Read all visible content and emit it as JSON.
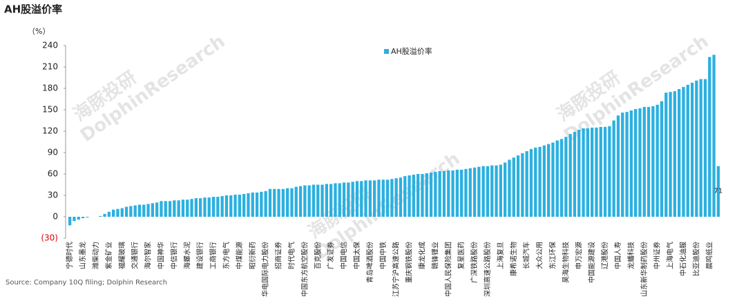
{
  "chart_data": {
    "type": "bar",
    "title": "AH股溢价率",
    "y_unit_label": "（%）",
    "source": "Source: Company 10Q filing; Dolphin Research",
    "watermark": [
      "海豚投研",
      "DolphinResearch"
    ],
    "ylim": [
      -30,
      240
    ],
    "yticks": [
      {
        "value": -30,
        "label": "(30)"
      },
      0,
      30,
      60,
      90,
      120,
      150,
      180,
      210,
      240
    ],
    "negative_tick_color": "#e00000",
    "grid": false,
    "legend": "top",
    "categories": [
      "宁德时代",
      null,
      null,
      "山东墨龙",
      null,
      null,
      "潍柴动力",
      null,
      null,
      "紫金矿业",
      null,
      null,
      "福耀玻璃",
      null,
      null,
      "交通银行",
      null,
      null,
      "海尔智家",
      null,
      null,
      "中国神华",
      null,
      null,
      "中信银行",
      null,
      null,
      "海螺水泥",
      null,
      null,
      "建设银行",
      null,
      null,
      "工商银行",
      null,
      null,
      "东方电气",
      null,
      null,
      "中煤能源",
      null,
      null,
      "昭衍新药",
      null,
      null,
      "华电国际电力股份",
      null,
      null,
      "招商证券",
      null,
      null,
      "时代电气",
      null,
      null,
      "中国东方航空股份",
      null,
      null,
      "百克股份",
      null,
      null,
      "广发证券",
      null,
      null,
      "中国电信",
      null,
      null,
      "中国太保",
      null,
      null,
      "青岛啤酒股份",
      null,
      null,
      "中国中铁",
      null,
      null,
      "江苏宁沪高速公路",
      null,
      null,
      "重庆钢铁股份",
      null,
      null,
      "康龙化成",
      null,
      null,
      "赣锋锂业",
      null,
      null,
      "中国人民保险集团",
      null,
      null,
      "复星医药",
      null,
      null,
      "广深铁路股份",
      null,
      null,
      "深圳高速公路股份",
      null,
      null,
      "上海复旦",
      null,
      null,
      "康希诺生物",
      null,
      null,
      "长城汽车",
      null,
      null,
      "大众公用",
      null,
      null,
      "东江环保",
      null,
      null,
      "昊海生物科技",
      null,
      null,
      "申万宏源",
      null,
      null,
      "中国能源建设",
      null,
      null,
      "辽港股份",
      null,
      null,
      "中国人寿",
      null,
      null,
      "龙蟠科技",
      null,
      null,
      "山东新华制药股份",
      null,
      null,
      "中州证券",
      null,
      null,
      "上海电气",
      null,
      null,
      "中石化油服",
      null,
      null,
      "比亚迪股份",
      null,
      null,
      "晨鸣纸业",
      null,
      null
    ],
    "series": [
      {
        "name": "AH股溢价率",
        "color": "#2bb0e0",
        "values": [
          -12,
          -6,
          -4,
          -2,
          -1,
          0,
          0,
          1,
          4,
          7,
          10,
          11,
          12,
          14,
          15,
          16,
          17,
          17,
          18,
          19,
          20,
          22,
          22,
          22,
          23,
          23,
          24,
          24,
          25,
          26,
          26,
          27,
          27,
          28,
          28,
          29,
          30,
          30,
          31,
          31,
          32,
          33,
          34,
          34,
          35,
          36,
          39,
          39,
          39,
          39,
          40,
          40,
          42,
          43,
          44,
          44,
          45,
          45,
          45,
          46,
          46,
          47,
          47,
          48,
          48,
          49,
          50,
          50,
          51,
          51,
          51,
          52,
          52,
          52,
          53,
          54,
          55,
          57,
          58,
          59,
          60,
          60,
          61,
          62,
          63,
          64,
          64,
          65,
          65,
          66,
          66,
          67,
          68,
          69,
          70,
          71,
          71,
          72,
          72,
          73,
          76,
          80,
          83,
          86,
          89,
          92,
          95,
          97,
          98,
          100,
          102,
          104,
          107,
          109,
          112,
          116,
          119,
          122,
          124,
          124,
          125,
          125,
          126,
          126,
          127,
          135,
          142,
          146,
          147,
          149,
          151,
          152,
          154,
          154,
          155,
          157,
          162,
          174,
          175,
          176,
          179,
          182,
          185,
          188,
          191,
          193,
          193,
          224,
          227,
          71
        ]
      }
    ]
  }
}
